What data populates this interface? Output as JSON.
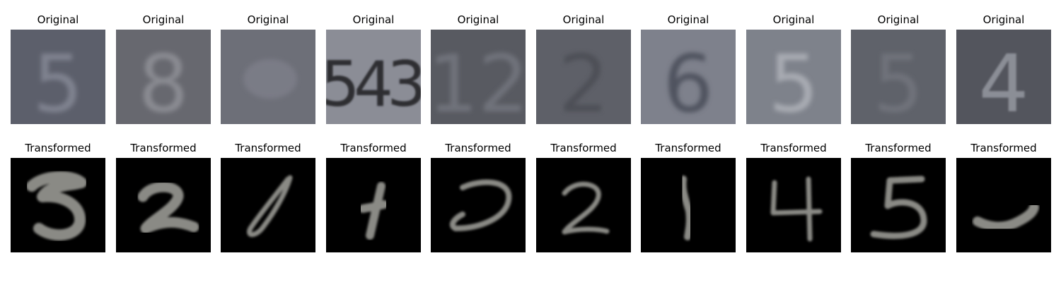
{
  "rows": [
    {
      "id": "original",
      "title": "Original",
      "panels": [
        {
          "digit": "5",
          "bg": "#5c5f6b",
          "fg": "#7f828f",
          "shape": "text-blur"
        },
        {
          "digit": "8",
          "bg": "#67686f",
          "fg": "#8a8b92",
          "shape": "text-blur"
        },
        {
          "digit": "",
          "bg": "#6d6f78",
          "fg": "#7a7c86",
          "shape": "blank"
        },
        {
          "digit": "543",
          "bg": "#8b8d96",
          "fg": "#2d2e33",
          "shape": "text-multi"
        },
        {
          "digit": "12",
          "bg": "#585a61",
          "fg": "#70727a",
          "shape": "text-blur"
        },
        {
          "digit": "2",
          "bg": "#5e6068",
          "fg": "#4d4f56",
          "shape": "text-blur"
        },
        {
          "digit": "6",
          "bg": "#7e818c",
          "fg": "#50535e",
          "shape": "text-blur"
        },
        {
          "digit": "5",
          "bg": "#7e828b",
          "fg": "#a8abb2",
          "shape": "text-blur"
        },
        {
          "digit": "5",
          "bg": "#5f626a",
          "fg": "#6f727a",
          "shape": "text-blur"
        },
        {
          "digit": "4",
          "bg": "#53555d",
          "fg": "#8b8e96",
          "shape": "text-sharp"
        }
      ]
    },
    {
      "id": "transformed",
      "title": "Transformed",
      "panels": [
        {
          "digit": "5",
          "bg": "#000000",
          "fg": "#8a8a85",
          "shape": "mnist"
        },
        {
          "digit": "2",
          "bg": "#000000",
          "fg": "#8a8a85",
          "shape": "mnist"
        },
        {
          "digit": "0",
          "bg": "#000000",
          "fg": "#8a8a85",
          "shape": "mnist"
        },
        {
          "digit": "1",
          "bg": "#000000",
          "fg": "#8a8a85",
          "shape": "mnist"
        },
        {
          "digit": "2",
          "bg": "#000000",
          "fg": "#8a8a85",
          "shape": "mnist"
        },
        {
          "digit": "2",
          "bg": "#000000",
          "fg": "#8a8a85",
          "shape": "mnist"
        },
        {
          "digit": "1",
          "bg": "#000000",
          "fg": "#8a8a85",
          "shape": "mnist"
        },
        {
          "digit": "4",
          "bg": "#000000",
          "fg": "#8a8a85",
          "shape": "mnist"
        },
        {
          "digit": "5",
          "bg": "#000000",
          "fg": "#8a8a85",
          "shape": "mnist"
        },
        {
          "digit": "1",
          "bg": "#000000",
          "fg": "#8a8a85",
          "shape": "mnist"
        }
      ]
    }
  ]
}
